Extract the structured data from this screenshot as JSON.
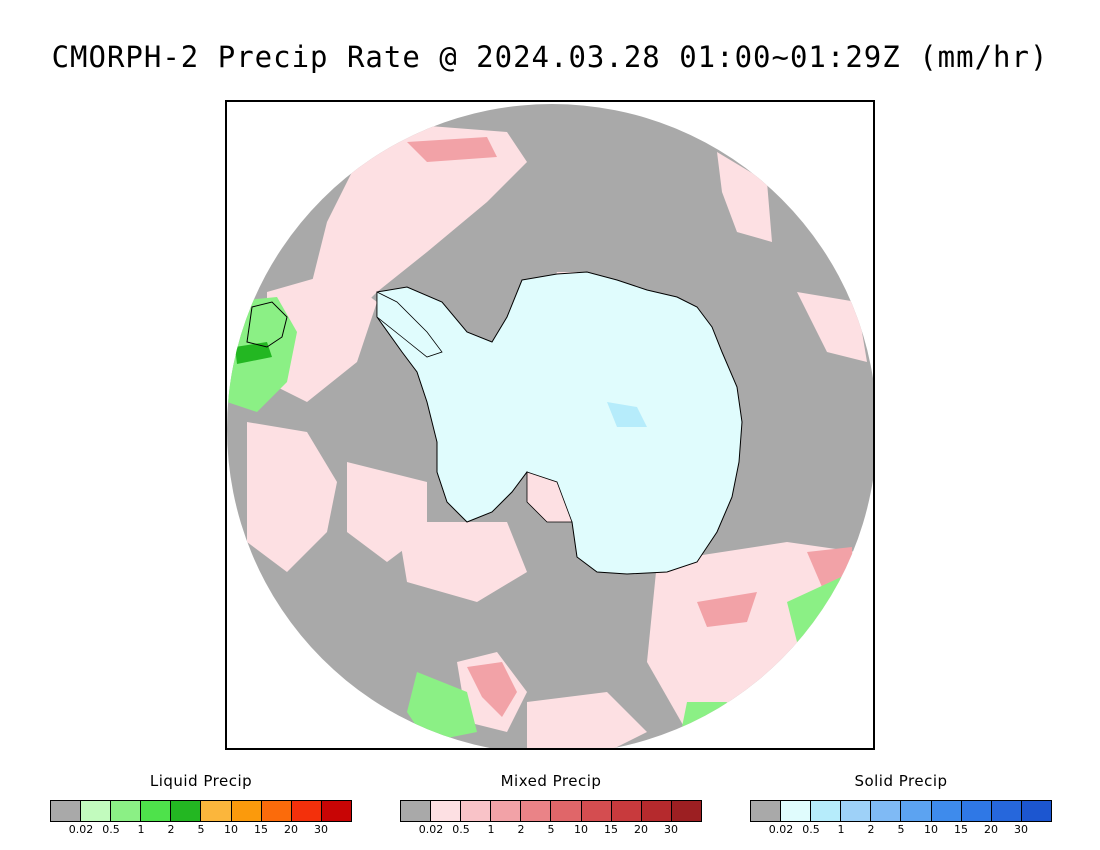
{
  "title": "CMORPH-2 Precip Rate @ 2024.03.28 01:00~01:29Z (mm/hr)",
  "map": {
    "projection_description": "south polar stereographic",
    "background_color": "#a9a9a9",
    "ice_color": "#e0fcfd"
  },
  "legends": [
    {
      "title": "Liquid Precip",
      "colors": [
        "#a9a9a9",
        "#c2fbbe",
        "#8bf085",
        "#4ee24b",
        "#23b722",
        "#fbb63c",
        "#fb9a0c",
        "#fb6b0b",
        "#f3300b",
        "#c80505"
      ],
      "ticks": [
        "0.02",
        "0.5",
        "1",
        "2",
        "5",
        "10",
        "15",
        "20",
        "30"
      ]
    },
    {
      "title": "Mixed Precip",
      "colors": [
        "#a9a9a9",
        "#fde0e3",
        "#f9c3c8",
        "#f2a2a7",
        "#ea8387",
        "#e06669",
        "#d44d50",
        "#c83a3d",
        "#b52a2d",
        "#9c1f22"
      ],
      "ticks": [
        "0.02",
        "0.5",
        "1",
        "2",
        "5",
        "10",
        "15",
        "20",
        "30"
      ]
    },
    {
      "title": "Solid Precip",
      "colors": [
        "#a9a9a9",
        "#e0fcfd",
        "#b6ecfb",
        "#9ed1f8",
        "#7fbaf5",
        "#5ca3f1",
        "#3e8bec",
        "#2f78e6",
        "#2667dc",
        "#1c56d0"
      ],
      "ticks": [
        "0.02",
        "0.5",
        "1",
        "2",
        "5",
        "10",
        "15",
        "20",
        "30"
      ]
    }
  ]
}
